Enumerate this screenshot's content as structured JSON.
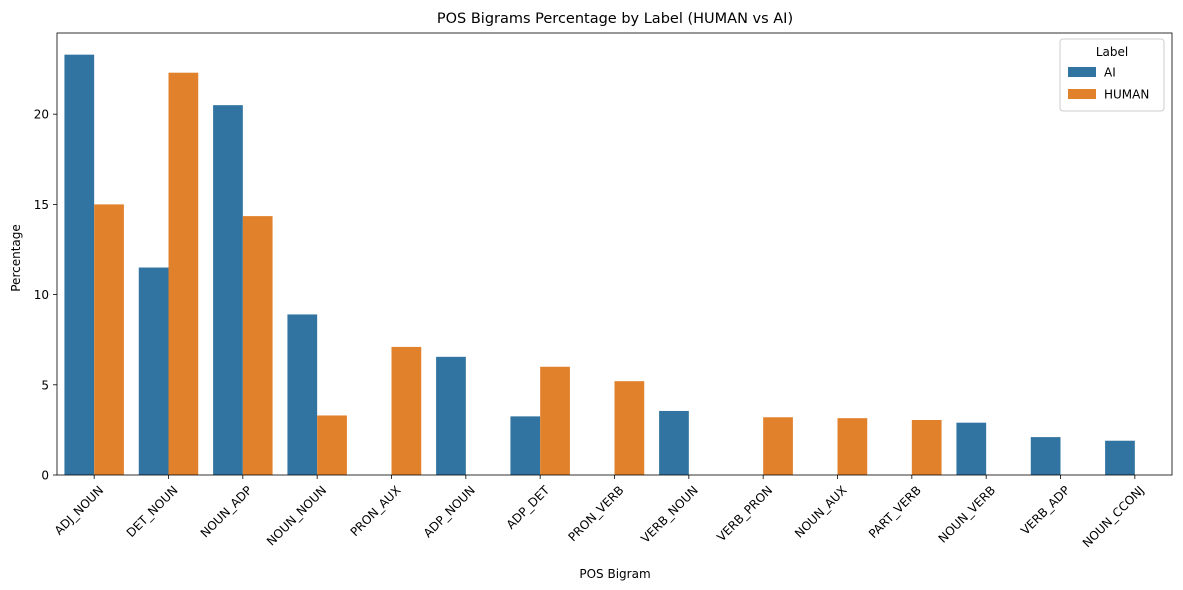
{
  "chart_data": {
    "type": "bar",
    "title": "POS Bigrams Percentage by Label (HUMAN vs AI)",
    "xlabel": "POS Bigram",
    "ylabel": "Percentage",
    "categories": [
      "ADJ_NOUN",
      "DET_NOUN",
      "NOUN_ADP",
      "NOUN_NOUN",
      "PRON_AUX",
      "ADP_NOUN",
      "ADP_DET",
      "PRON_VERB",
      "VERB_NOUN",
      "VERB_PRON",
      "NOUN_AUX",
      "PART_VERB",
      "NOUN_VERB",
      "VERB_ADP",
      "NOUN_CCONJ"
    ],
    "series": [
      {
        "name": "AI",
        "color": "#3274a1",
        "values": [
          23.3,
          11.5,
          20.5,
          8.9,
          null,
          6.55,
          3.25,
          null,
          3.55,
          null,
          null,
          null,
          2.9,
          2.1,
          1.9
        ]
      },
      {
        "name": "HUMAN",
        "color": "#e1812c",
        "values": [
          15.0,
          22.3,
          14.35,
          3.3,
          7.1,
          null,
          6.0,
          5.2,
          null,
          3.2,
          3.15,
          3.05,
          null,
          null,
          null
        ]
      }
    ],
    "yticks": [
      0,
      5,
      10,
      15,
      20
    ],
    "ylim": [
      0,
      24.5
    ],
    "legend": {
      "title": "Label",
      "position": "top-right"
    },
    "grid": false
  }
}
